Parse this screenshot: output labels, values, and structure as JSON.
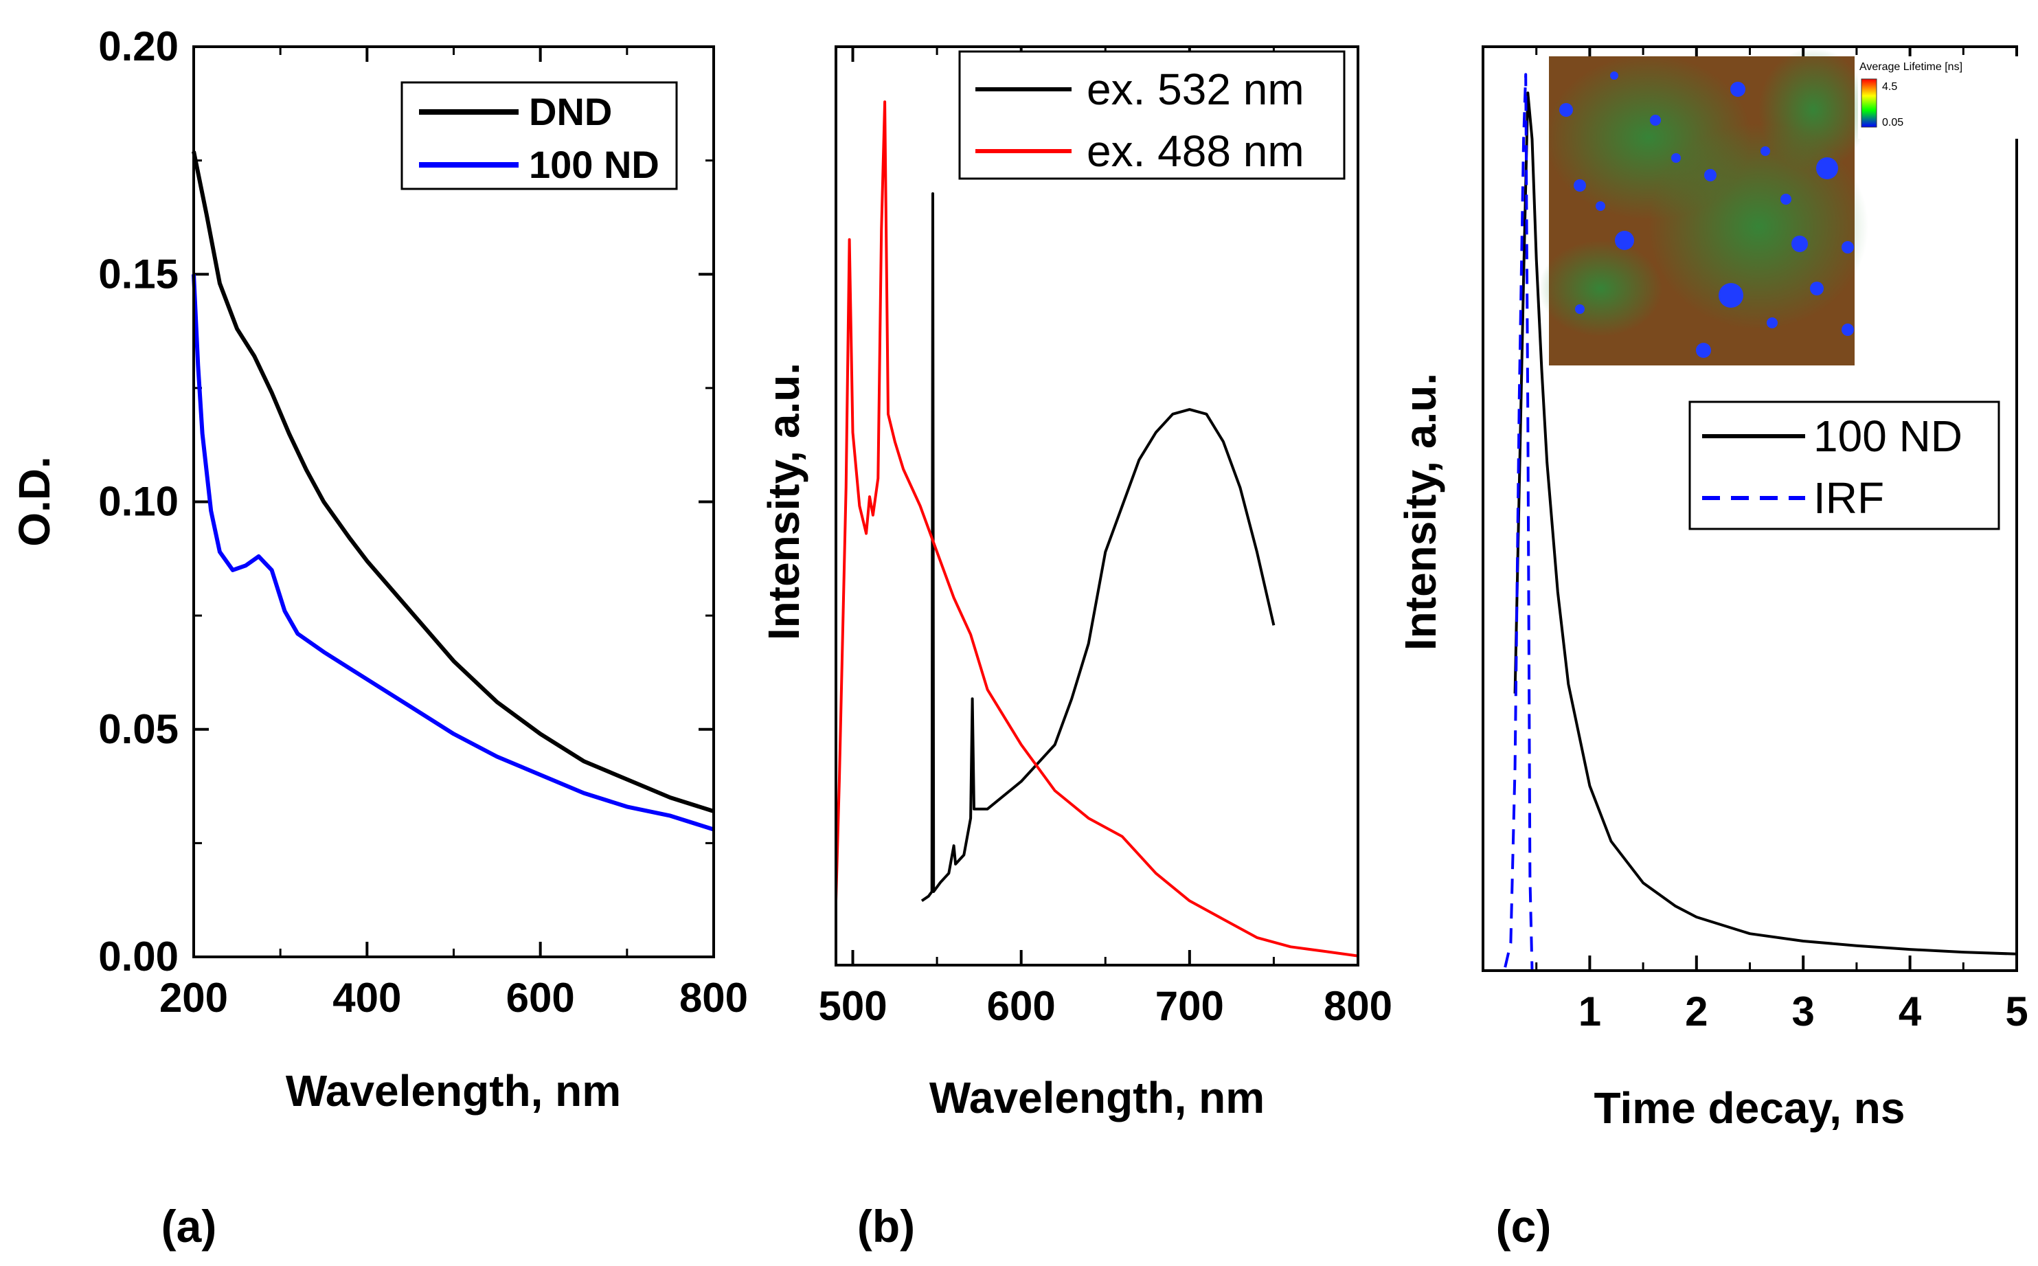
{
  "panel_labels": [
    "(a)",
    "(b)",
    "(c)"
  ],
  "chart_data": [
    {
      "id": "a",
      "type": "line",
      "title": "",
      "xlabel": "Wavelength, nm",
      "ylabel": "O.D.",
      "xlim": [
        200,
        800
      ],
      "ylim": [
        0.0,
        0.2
      ],
      "xticks": [
        200,
        400,
        600,
        800
      ],
      "xtick_labels": [
        "200",
        "400",
        "600",
        "800"
      ],
      "yticks": [
        0.0,
        0.05,
        0.1,
        0.15,
        0.2
      ],
      "ytick_labels": [
        "0.00",
        "0.05",
        "0.10",
        "0.15",
        "0.20"
      ],
      "legend": "top-right",
      "series": [
        {
          "name": "DND",
          "color": "#000000",
          "points": [
            [
              200,
              0.177
            ],
            [
              215,
              0.163
            ],
            [
              230,
              0.148
            ],
            [
              250,
              0.138
            ],
            [
              270,
              0.132
            ],
            [
              290,
              0.124
            ],
            [
              310,
              0.115
            ],
            [
              330,
              0.107
            ],
            [
              350,
              0.1
            ],
            [
              380,
              0.092
            ],
            [
              400,
              0.087
            ],
            [
              450,
              0.076
            ],
            [
              500,
              0.065
            ],
            [
              550,
              0.056
            ],
            [
              600,
              0.049
            ],
            [
              650,
              0.043
            ],
            [
              700,
              0.039
            ],
            [
              750,
              0.035
            ],
            [
              800,
              0.032
            ]
          ]
        },
        {
          "name": "100 ND",
          "color": "#0000ff",
          "points": [
            [
              200,
              0.15
            ],
            [
              205,
              0.13
            ],
            [
              210,
              0.115
            ],
            [
              220,
              0.098
            ],
            [
              230,
              0.089
            ],
            [
              245,
              0.085
            ],
            [
              260,
              0.086
            ],
            [
              275,
              0.088
            ],
            [
              290,
              0.085
            ],
            [
              305,
              0.076
            ],
            [
              320,
              0.071
            ],
            [
              350,
              0.067
            ],
            [
              400,
              0.061
            ],
            [
              450,
              0.055
            ],
            [
              500,
              0.049
            ],
            [
              550,
              0.044
            ],
            [
              600,
              0.04
            ],
            [
              650,
              0.036
            ],
            [
              700,
              0.033
            ],
            [
              750,
              0.031
            ],
            [
              800,
              0.028
            ]
          ]
        }
      ]
    },
    {
      "id": "b",
      "type": "line",
      "title": "",
      "xlabel": "Wavelength, nm",
      "ylabel": "Intensity, a.u.",
      "xlim": [
        490,
        800
      ],
      "ylim": [
        0.0,
        1.0
      ],
      "xticks": [
        500,
        600,
        700,
        800
      ],
      "xtick_labels": [
        "500",
        "600",
        "700",
        "800"
      ],
      "legend": "top-right",
      "series": [
        {
          "name": "ex. 532 nm",
          "color": "#000000",
          "points": [
            [
              541,
              0.07
            ],
            [
              545,
              0.075
            ],
            [
              547,
              0.08
            ],
            [
              547.5,
              0.84
            ],
            [
              548,
              0.08
            ],
            [
              552,
              0.09
            ],
            [
              557,
              0.1
            ],
            [
              560,
              0.13
            ],
            [
              561,
              0.11
            ],
            [
              566,
              0.12
            ],
            [
              570,
              0.16
            ],
            [
              571,
              0.29
            ],
            [
              572,
              0.17
            ],
            [
              580,
              0.17
            ],
            [
              600,
              0.2
            ],
            [
              620,
              0.24
            ],
            [
              630,
              0.29
            ],
            [
              640,
              0.35
            ],
            [
              650,
              0.45
            ],
            [
              660,
              0.5
            ],
            [
              670,
              0.55
            ],
            [
              680,
              0.58
            ],
            [
              690,
              0.6
            ],
            [
              700,
              0.605
            ],
            [
              710,
              0.6
            ],
            [
              720,
              0.57
            ],
            [
              730,
              0.52
            ],
            [
              740,
              0.45
            ],
            [
              750,
              0.37
            ]
          ]
        },
        {
          "name": "ex. 488 nm",
          "color": "#ff0000",
          "points": [
            [
              490,
              0.07
            ],
            [
              492,
              0.2
            ],
            [
              496,
              0.52
            ],
            [
              498,
              0.79
            ],
            [
              500,
              0.58
            ],
            [
              504,
              0.5
            ],
            [
              508,
              0.47
            ],
            [
              510,
              0.51
            ],
            [
              512,
              0.49
            ],
            [
              515,
              0.53
            ],
            [
              517,
              0.8
            ],
            [
              519,
              0.94
            ],
            [
              521,
              0.6
            ],
            [
              525,
              0.57
            ],
            [
              530,
              0.54
            ],
            [
              540,
              0.5
            ],
            [
              550,
              0.45
            ],
            [
              560,
              0.4
            ],
            [
              570,
              0.36
            ],
            [
              580,
              0.3
            ],
            [
              600,
              0.24
            ],
            [
              620,
              0.19
            ],
            [
              640,
              0.16
            ],
            [
              660,
              0.14
            ],
            [
              680,
              0.1
            ],
            [
              700,
              0.07
            ],
            [
              720,
              0.05
            ],
            [
              740,
              0.03
            ],
            [
              760,
              0.02
            ],
            [
              780,
              0.015
            ],
            [
              800,
              0.01
            ]
          ]
        }
      ]
    },
    {
      "id": "c",
      "type": "line",
      "title": "",
      "xlabel": "Time decay, ns",
      "ylabel": "Intensity, a.u.",
      "xlim": [
        0,
        5
      ],
      "ylim": [
        0.0,
        1.0
      ],
      "xticks": [
        1,
        2,
        3,
        4,
        5
      ],
      "xtick_labels": [
        "1",
        "2",
        "3",
        "4",
        "5"
      ],
      "legend": "right",
      "series": [
        {
          "name": "100 ND",
          "color": "#000000",
          "points": [
            [
              0.3,
              0.3
            ],
            [
              0.38,
              0.75
            ],
            [
              0.42,
              0.95
            ],
            [
              0.46,
              0.9
            ],
            [
              0.5,
              0.77
            ],
            [
              0.55,
              0.65
            ],
            [
              0.6,
              0.55
            ],
            [
              0.7,
              0.41
            ],
            [
              0.8,
              0.31
            ],
            [
              1.0,
              0.2
            ],
            [
              1.2,
              0.14
            ],
            [
              1.5,
              0.095
            ],
            [
              1.8,
              0.07
            ],
            [
              2.0,
              0.058
            ],
            [
              2.5,
              0.04
            ],
            [
              3.0,
              0.032
            ],
            [
              3.5,
              0.027
            ],
            [
              4.0,
              0.023
            ],
            [
              4.5,
              0.02
            ],
            [
              5.0,
              0.018
            ]
          ]
        },
        {
          "name": "IRF",
          "color": "#0000ff",
          "points": [
            [
              0.0,
              0.0
            ],
            [
              0.2,
              0.0
            ],
            [
              0.26,
              0.03
            ],
            [
              0.3,
              0.22
            ],
            [
              0.34,
              0.62
            ],
            [
              0.38,
              0.9
            ],
            [
              0.4,
              0.97
            ],
            [
              0.42,
              0.6
            ],
            [
              0.44,
              0.1
            ],
            [
              0.46,
              0.0
            ],
            [
              1.0,
              0.0
            ],
            [
              5.0,
              0.0
            ]
          ]
        }
      ],
      "inset": {
        "title": "Average Lifetime [ns]",
        "scale_max": "4.5",
        "scale_min": "0.05",
        "colors": {
          "high": "#ff0000",
          "mid": "#ffff00",
          "low": "#0000ff",
          "bg": "#7a4a1e",
          "green": "#2f8a3a",
          "dot": "#1f3cff"
        }
      }
    }
  ]
}
